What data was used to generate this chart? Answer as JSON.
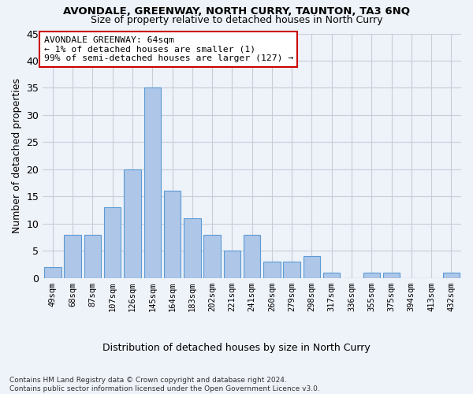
{
  "title": "AVONDALE, GREENWAY, NORTH CURRY, TAUNTON, TA3 6NQ",
  "subtitle": "Size of property relative to detached houses in North Curry",
  "xlabel": "Distribution of detached houses by size in North Curry",
  "ylabel": "Number of detached properties",
  "bar_values": [
    2,
    8,
    8,
    13,
    20,
    35,
    16,
    11,
    8,
    5,
    8,
    3,
    3,
    4,
    1,
    0,
    1,
    1,
    0,
    0,
    1
  ],
  "bar_labels": [
    "49sqm",
    "68sqm",
    "87sqm",
    "107sqm",
    "126sqm",
    "145sqm",
    "164sqm",
    "183sqm",
    "202sqm",
    "221sqm",
    "241sqm",
    "260sqm",
    "279sqm",
    "298sqm",
    "317sqm",
    "336sqm",
    "355sqm",
    "375sqm",
    "394sqm",
    "413sqm",
    "432sqm"
  ],
  "bar_color": "#aec6e8",
  "bar_edge_color": "#5b9bd5",
  "annotation_box_text": "AVONDALE GREENWAY: 64sqm\n← 1% of detached houses are smaller (1)\n99% of semi-detached houses are larger (127) →",
  "annotation_box_color": "#ffffff",
  "annotation_box_edge_color": "#cc0000",
  "bg_color": "#eef2f9",
  "grid_color": "#c8cdd8",
  "footnote": "Contains HM Land Registry data © Crown copyright and database right 2024.\nContains public sector information licensed under the Open Government Licence v3.0.",
  "ylim": [
    0,
    45
  ],
  "yticks": [
    0,
    5,
    10,
    15,
    20,
    25,
    30,
    35,
    40,
    45
  ]
}
